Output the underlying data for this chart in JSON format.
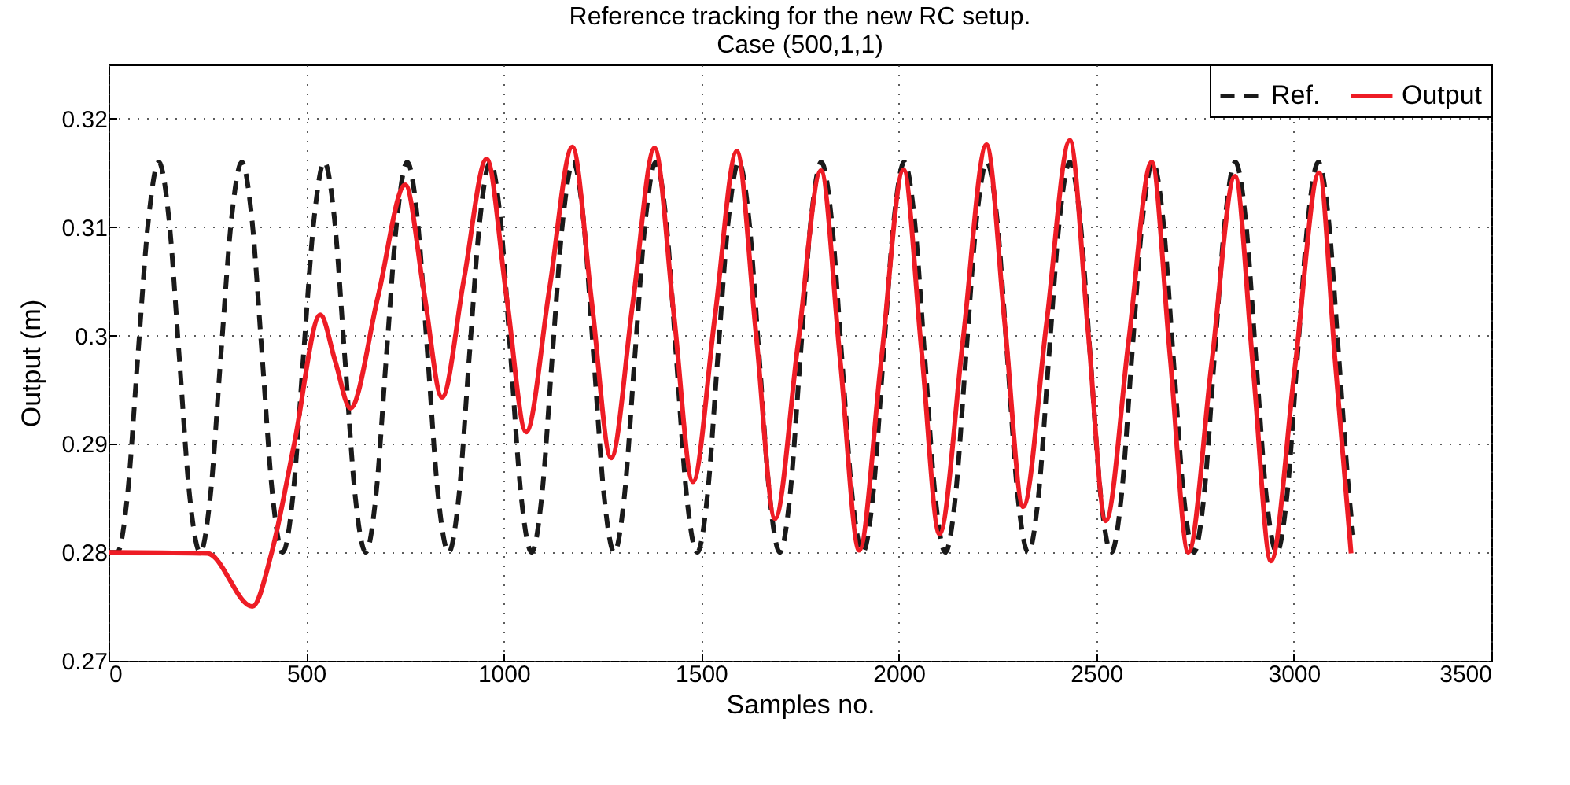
{
  "chart_data": {
    "type": "line",
    "title": "Reference tracking for the new RC setup.",
    "subtitle": "Case (500,1,1)",
    "xlabel": "Samples no.",
    "ylabel": "Output (m)",
    "xlim": [
      0,
      3500
    ],
    "xticks": [
      0,
      500,
      1000,
      1500,
      2000,
      2500,
      3000,
      3500
    ],
    "ylim": [
      0.27,
      0.325
    ],
    "yticks": [
      0.27,
      0.28,
      0.29,
      0.3,
      0.31,
      0.32
    ],
    "grid": true,
    "legend": "top right",
    "marker": "none",
    "series": [
      {
        "name": "Ref.",
        "color": "#1a1a1a",
        "line_style": "dashed",
        "x": [
          0,
          22,
          48,
          74,
          101,
          127,
          153,
          179,
          205,
          232,
          258,
          284,
          311,
          337,
          363,
          389,
          415,
          441,
          467,
          493,
          520,
          546,
          572,
          598,
          624,
          651,
          677,
          703,
          730,
          756,
          782,
          808,
          834,
          861,
          887,
          913,
          940,
          966,
          992,
          1018,
          1044,
          1071,
          1097,
          1123,
          1150,
          1176,
          1202,
          1228,
          1254,
          1280,
          1306,
          1332,
          1359,
          1385,
          1411,
          1437,
          1463,
          1490,
          1516,
          1542,
          1569,
          1595,
          1621,
          1647,
          1673,
          1699,
          1725,
          1751,
          1778,
          1804,
          1830,
          1856,
          1882,
          1909,
          1935,
          1961,
          1988,
          2014,
          2040,
          2066,
          2092,
          2118,
          2144,
          2170,
          2197,
          2223,
          2249,
          2275,
          2301,
          2328,
          2354,
          2380,
          2407,
          2433,
          2459,
          2485,
          2511,
          2538,
          2564,
          2590,
          2617,
          2643,
          2669,
          2695,
          2721,
          2747,
          2773,
          2799,
          2826,
          2852,
          2878,
          2904,
          2930,
          2957,
          2983,
          3009,
          3036,
          3062,
          3088,
          3114,
          3140,
          3150
        ],
        "values": [
          0.28,
          0.28,
          0.2853,
          0.298,
          0.3107,
          0.316,
          0.3107,
          0.298,
          0.2853,
          0.28,
          0.2853,
          0.298,
          0.3107,
          0.316,
          0.3107,
          0.298,
          0.2853,
          0.28,
          0.2853,
          0.298,
          0.3107,
          0.316,
          0.3107,
          0.298,
          0.2853,
          0.28,
          0.2853,
          0.298,
          0.3107,
          0.316,
          0.3107,
          0.298,
          0.2853,
          0.28,
          0.2853,
          0.298,
          0.3107,
          0.316,
          0.3107,
          0.298,
          0.2853,
          0.28,
          0.2853,
          0.298,
          0.3107,
          0.316,
          0.3107,
          0.298,
          0.2853,
          0.28,
          0.2853,
          0.298,
          0.3107,
          0.316,
          0.3107,
          0.298,
          0.2853,
          0.28,
          0.2853,
          0.298,
          0.3107,
          0.316,
          0.3107,
          0.298,
          0.2853,
          0.28,
          0.2853,
          0.298,
          0.3107,
          0.316,
          0.3107,
          0.298,
          0.2853,
          0.28,
          0.2853,
          0.298,
          0.3107,
          0.316,
          0.3107,
          0.298,
          0.2853,
          0.28,
          0.2853,
          0.298,
          0.3107,
          0.316,
          0.3107,
          0.298,
          0.2853,
          0.28,
          0.2853,
          0.298,
          0.3107,
          0.316,
          0.3107,
          0.298,
          0.2853,
          0.28,
          0.2853,
          0.298,
          0.3107,
          0.316,
          0.3107,
          0.298,
          0.2853,
          0.28,
          0.2853,
          0.298,
          0.3107,
          0.316,
          0.3107,
          0.298,
          0.2853,
          0.28,
          0.2853,
          0.298,
          0.3107,
          0.316,
          0.3107,
          0.298,
          0.2853,
          0.2816
        ]
      },
      {
        "name": "Output",
        "color": "#ee1c25",
        "line_style": "solid",
        "x": [
          0,
          250,
          364,
          413,
          470,
          536,
          574,
          612,
          682,
          751,
          798,
          844,
          900,
          957,
          1007,
          1057,
          1116,
          1174,
          1223,
          1272,
          1327,
          1382,
          1431,
          1479,
          1535,
          1590,
          1639,
          1687,
          1745,
          1803,
          1852,
          1900,
          1956,
          2012,
          2058,
          2103,
          2163,
          2222,
          2269,
          2315,
          2374,
          2433,
          2479,
          2524,
          2582,
          2640,
          2687,
          2733,
          2792,
          2851,
          2897,
          2942,
          3003,
          3064,
          3105,
          3145
        ],
        "values": [
          0.28,
          0.2799,
          0.275,
          0.28,
          0.29,
          0.3019,
          0.2976,
          0.2933,
          0.3036,
          0.3139,
          0.3041,
          0.2943,
          0.3053,
          0.3163,
          0.3037,
          0.2911,
          0.3043,
          0.3174,
          0.3031,
          0.2887,
          0.303,
          0.3173,
          0.3019,
          0.2865,
          0.3018,
          0.317,
          0.3001,
          0.2831,
          0.2992,
          0.3152,
          0.2977,
          0.2802,
          0.2978,
          0.3153,
          0.2985,
          0.2817,
          0.2997,
          0.3176,
          0.3009,
          0.2842,
          0.3011,
          0.318,
          0.3005,
          0.2829,
          0.2995,
          0.316,
          0.298,
          0.28,
          0.2974,
          0.3147,
          0.297,
          0.2792,
          0.2971,
          0.315,
          0.2975,
          0.2799
        ]
      }
    ]
  }
}
